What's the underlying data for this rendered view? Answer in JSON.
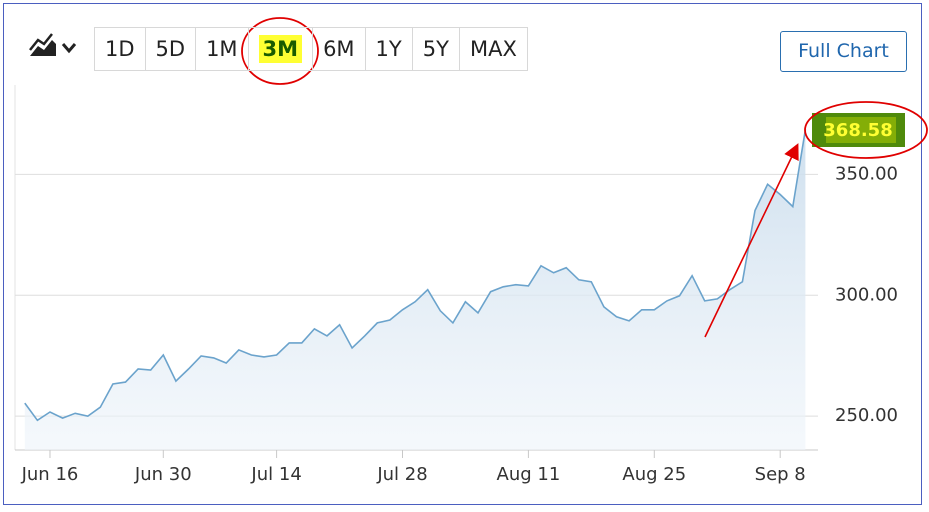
{
  "range_buttons": [
    "1D",
    "5D",
    "1M",
    "3M",
    "6M",
    "1Y",
    "5Y",
    "MAX"
  ],
  "active_range": "3M",
  "full_chart_button": "Full Chart",
  "chart_data": {
    "type": "line",
    "categories": [
      null,
      null,
      "Jun 16",
      null,
      null,
      null,
      null,
      null,
      null,
      null,
      null,
      "Jun 30",
      null,
      null,
      null,
      null,
      null,
      null,
      null,
      null,
      "Jul 14",
      null,
      null,
      null,
      null,
      null,
      null,
      null,
      null,
      null,
      "Jul 28",
      null,
      null,
      null,
      null,
      null,
      null,
      null,
      null,
      null,
      "Aug 11",
      null,
      null,
      null,
      null,
      null,
      null,
      null,
      null,
      null,
      "Aug 25",
      null,
      null,
      null,
      null,
      null,
      null,
      null,
      null,
      null,
      "Sep 8",
      null,
      null
    ],
    "series": [
      {
        "color": "#6ba3cc",
        "values": [
          255.4,
          248.3,
          251.7,
          249.2,
          251.2,
          250,
          253.7,
          263.3,
          264.1,
          269.5,
          269.1,
          275.3,
          264.5,
          269.5,
          274.9,
          274.1,
          272,
          277.4,
          275.3,
          274.5,
          275.3,
          280.3,
          280.3,
          286.1,
          283.2,
          287.8,
          278.2,
          283.2,
          288.6,
          289.8,
          294,
          297.3,
          302.3,
          293.6,
          288.6,
          297.3,
          292.7,
          301.5,
          303.5,
          304.4,
          303.9,
          312.2,
          309.3,
          311.4,
          306.4,
          305.6,
          295.2,
          291.1,
          289.4,
          294,
          294,
          297.7,
          299.8,
          308.1,
          297.7,
          298.5,
          302.3,
          305.6,
          335.1,
          345.9,
          341.7,
          336.7,
          368.58
        ]
      }
    ],
    "ylim": [
      236,
      387
    ],
    "yticks": [
      {
        "value": 250,
        "label": "250.00"
      },
      {
        "value": 300,
        "label": "300.00"
      },
      {
        "value": 350,
        "label": "350.00"
      }
    ],
    "grid": true
  }
}
